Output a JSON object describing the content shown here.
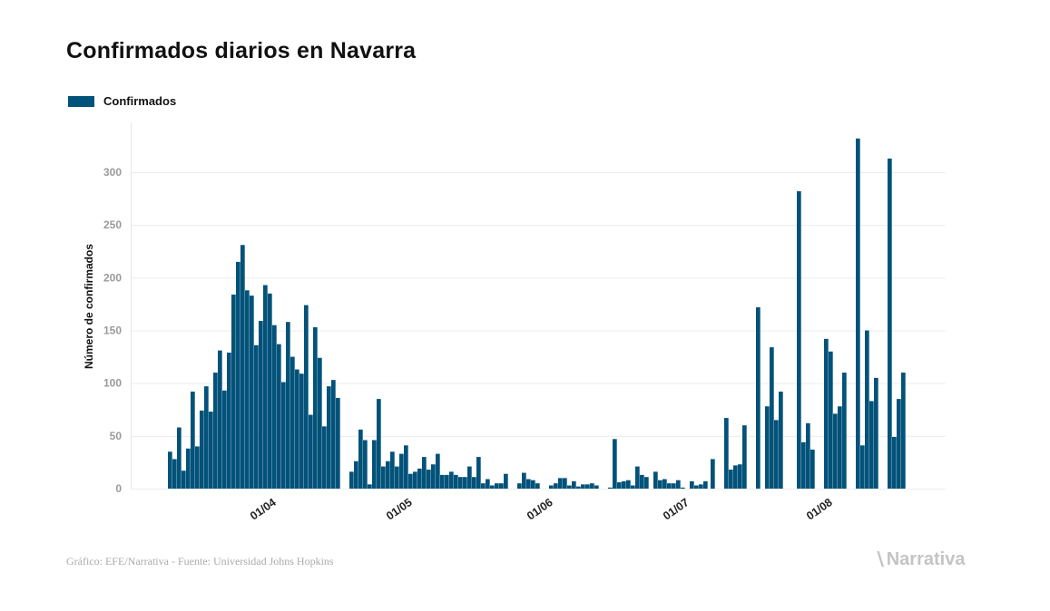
{
  "title": "Confirmados diarios en Navarra",
  "legend": [
    {
      "label": "Confirmados",
      "color": "#03527a"
    }
  ],
  "source": "Gráfico: EFE/Narrativa - Fuente: Universidad Johns Hopkins",
  "logo_text": "Narrativa",
  "chart_data": {
    "type": "bar",
    "title": "Confirmados diarios en Navarra",
    "xlabel": "",
    "ylabel": "Número de confirmados",
    "ylim": [
      0,
      340
    ],
    "yticks": [
      0,
      50,
      100,
      150,
      200,
      250,
      300
    ],
    "grid": true,
    "legend_position": "top-left",
    "start_date": "12/03",
    "xticks": [
      {
        "index": 20,
        "label": "01/04"
      },
      {
        "index": 50,
        "label": "01/05"
      },
      {
        "index": 81,
        "label": "01/06"
      },
      {
        "index": 111,
        "label": "01/07"
      },
      {
        "index": 142,
        "label": "01/08"
      }
    ],
    "series": [
      {
        "name": "Confirmados",
        "color": "#03527a",
        "values": [
          35,
          28,
          58,
          17,
          38,
          92,
          40,
          74,
          97,
          73,
          110,
          131,
          93,
          129,
          184,
          215,
          231,
          188,
          183,
          136,
          159,
          193,
          185,
          155,
          137,
          101,
          158,
          125,
          113,
          109,
          174,
          70,
          153,
          124,
          59,
          97,
          103,
          86,
          0,
          0,
          16,
          26,
          56,
          46,
          4,
          46,
          85,
          21,
          26,
          35,
          21,
          33,
          41,
          14,
          16,
          19,
          30,
          18,
          23,
          33,
          13,
          13,
          16,
          13,
          11,
          11,
          21,
          11,
          30,
          5,
          9,
          3,
          5,
          5,
          14,
          0,
          0,
          5,
          15,
          9,
          8,
          5,
          0,
          0,
          3,
          5,
          10,
          10,
          3,
          7,
          2,
          4,
          4,
          5,
          3,
          0,
          0,
          1,
          47,
          6,
          7,
          8,
          3,
          21,
          13,
          11,
          0,
          16,
          8,
          9,
          5,
          5,
          8,
          1,
          0,
          7,
          3,
          4,
          7,
          28,
          0,
          0,
          67,
          18,
          22,
          23,
          60,
          0,
          0,
          172,
          0,
          78,
          134,
          65,
          92,
          0,
          0,
          0,
          282,
          44,
          62,
          37,
          0,
          0,
          142,
          130,
          71,
          78,
          110,
          0,
          0,
          332,
          41,
          150,
          83,
          105,
          0,
          0,
          313,
          49,
          85,
          110
        ]
      }
    ]
  }
}
